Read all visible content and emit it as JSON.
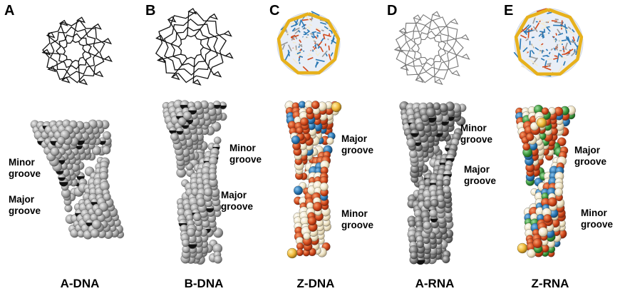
{
  "panels": [
    {
      "letter": "A",
      "caption": "A-DNA",
      "style": "gray-spacefill",
      "labels": [
        {
          "line1": "Minor",
          "line2": "groove"
        },
        {
          "line1": "Major",
          "line2": "groove"
        }
      ]
    },
    {
      "letter": "B",
      "caption": "B-DNA",
      "style": "gray-spacefill",
      "labels": [
        {
          "line1": "Minor",
          "line2": "groove"
        },
        {
          "line1": "Major",
          "line2": "groove"
        }
      ]
    },
    {
      "letter": "C",
      "caption": "Z-DNA",
      "style": "colored-spacefill",
      "labels": [
        {
          "line1": "Major",
          "line2": "groove"
        },
        {
          "line1": "Minor",
          "line2": "groove"
        }
      ]
    },
    {
      "letter": "D",
      "caption": "A-RNA",
      "style": "dark-gray-spacefill",
      "labels": [
        {
          "line1": "Minor",
          "line2": "groove"
        },
        {
          "line1": "Major",
          "line2": "groove"
        }
      ]
    },
    {
      "letter": "E",
      "caption": "Z-RNA",
      "style": "colored-spacefill",
      "labels": [
        {
          "line1": "Major",
          "line2": "groove"
        },
        {
          "line1": "Minor",
          "line2": "groove"
        }
      ]
    }
  ],
  "colors": {
    "oxygen": "#d2491c",
    "carbon": "#f3ead0",
    "nitrogen": "#2b78b4",
    "phosphorus": "#f0b93a",
    "backbone_ribbon": "#e7b11c",
    "gray_atom": "#9a9a9a",
    "dark_atom": "#6d6d6d",
    "accent_green": "#3d9a3d"
  }
}
